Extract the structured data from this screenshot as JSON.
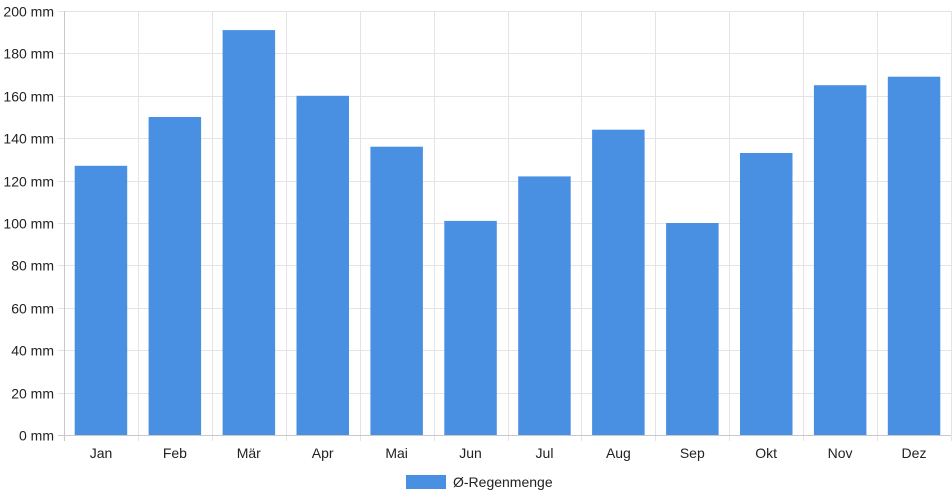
{
  "chart_data": {
    "type": "bar",
    "categories": [
      "Jan",
      "Feb",
      "Mär",
      "Apr",
      "Mai",
      "Jun",
      "Jul",
      "Aug",
      "Sep",
      "Okt",
      "Nov",
      "Dez"
    ],
    "series": [
      {
        "name": "Ø-Regenmenge",
        "color": "#4a90e2",
        "values": [
          127,
          150,
          191,
          160,
          136,
          101,
          122,
          144,
          100,
          133,
          165,
          169
        ]
      }
    ],
    "y_unit": "mm",
    "y_ticks": [
      0,
      20,
      40,
      60,
      80,
      100,
      120,
      140,
      160,
      180,
      200
    ],
    "ylim": [
      0,
      200
    ],
    "grid": true,
    "legend_position": "bottom-center",
    "colors": {
      "bar": "#4a90e2",
      "grid": "#e4e4e4",
      "axis": "#c8c8c8",
      "text": "#222222"
    }
  }
}
